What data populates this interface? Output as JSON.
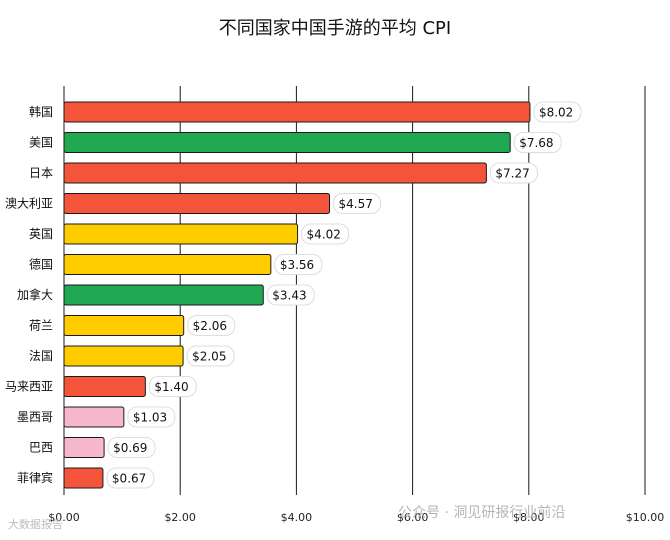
{
  "colors": {
    "red": "#F4553A",
    "green": "#21A852",
    "yellow": "#FFCC00",
    "pink": "#F7B8CB",
    "grid": "#1a1a1a",
    "bar_border": "#1a1a1a"
  },
  "watermark": {
    "right": "公众号 · 洞见研报行业前沿",
    "left": "大数据报告"
  },
  "chart_data": {
    "type": "bar",
    "orientation": "horizontal",
    "title": "不同国家中国手游的平均 CPI",
    "xlabel": "",
    "ylabel": "",
    "xlim": [
      0,
      10
    ],
    "x_ticks": [
      "$0.00",
      "$2.00",
      "$4.00",
      "$6.00",
      "$8.00",
      "$10.00"
    ],
    "grid": "vertical",
    "value_labels": true,
    "categories": [
      "韩国",
      "美国",
      "日本",
      "澳大利亚",
      "英国",
      "德国",
      "加拿大",
      "荷兰",
      "法国",
      "马来西亚",
      "墨西哥",
      "巴西",
      "菲律宾"
    ],
    "values": [
      8.02,
      7.68,
      7.27,
      4.57,
      4.02,
      3.56,
      3.43,
      2.06,
      2.05,
      1.4,
      1.03,
      0.69,
      0.67
    ],
    "value_labels_text": [
      "$8.02",
      "$7.68",
      "$7.27",
      "$4.57",
      "$4.02",
      "$3.56",
      "$3.43",
      "$2.06",
      "$2.05",
      "$1.40",
      "$1.03",
      "$0.69",
      "$0.67"
    ],
    "bar_colors": [
      "red",
      "green",
      "red",
      "red",
      "yellow",
      "yellow",
      "green",
      "yellow",
      "yellow",
      "red",
      "pink",
      "pink",
      "red"
    ]
  }
}
